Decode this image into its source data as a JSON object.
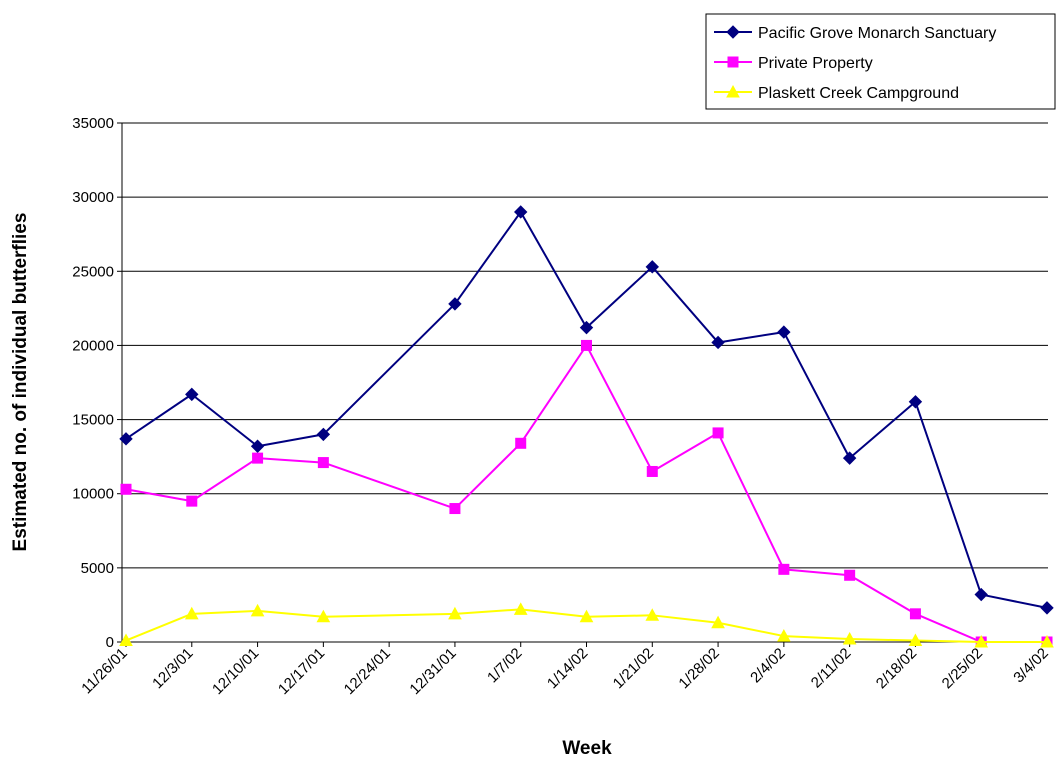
{
  "chart_data": {
    "type": "line",
    "xlabel": "Week",
    "ylabel": "Estimated no. of individual butterflies",
    "ylim": [
      0,
      35000
    ],
    "yticks": [
      "0",
      "5000",
      "10000",
      "15000",
      "20000",
      "25000",
      "30000",
      "35000"
    ],
    "grid": "horizontal",
    "legend_position": "top-right",
    "categories": [
      "11/26/01",
      "12/3/01",
      "12/10/01",
      "12/17/01",
      "12/24/01",
      "12/31/01",
      "1/7/02",
      "1/14/02",
      "1/21/02",
      "1/28/02",
      "2/4/02",
      "2/11/02",
      "2/18/02",
      "2/25/02",
      "3/4/02"
    ],
    "series": [
      {
        "name": "Pacific Grove Monarch Sanctuary",
        "color": "#000080",
        "marker": "diamond",
        "values": [
          13700,
          16700,
          13200,
          14000,
          null,
          22800,
          29000,
          21200,
          25300,
          20200,
          20900,
          12400,
          16200,
          3200,
          2300
        ]
      },
      {
        "name": "Private Property",
        "color": "#ff00ff",
        "marker": "square",
        "values": [
          10300,
          9500,
          12400,
          12100,
          null,
          9000,
          13400,
          20000,
          11500,
          14100,
          4900,
          4500,
          1900,
          0,
          0
        ]
      },
      {
        "name": "Plaskett Creek Campground",
        "color": "#ffff00",
        "marker": "triangle",
        "values": [
          100,
          1900,
          2100,
          1700,
          null,
          1900,
          2200,
          1700,
          1800,
          1300,
          400,
          200,
          100,
          0,
          0
        ]
      }
    ]
  }
}
